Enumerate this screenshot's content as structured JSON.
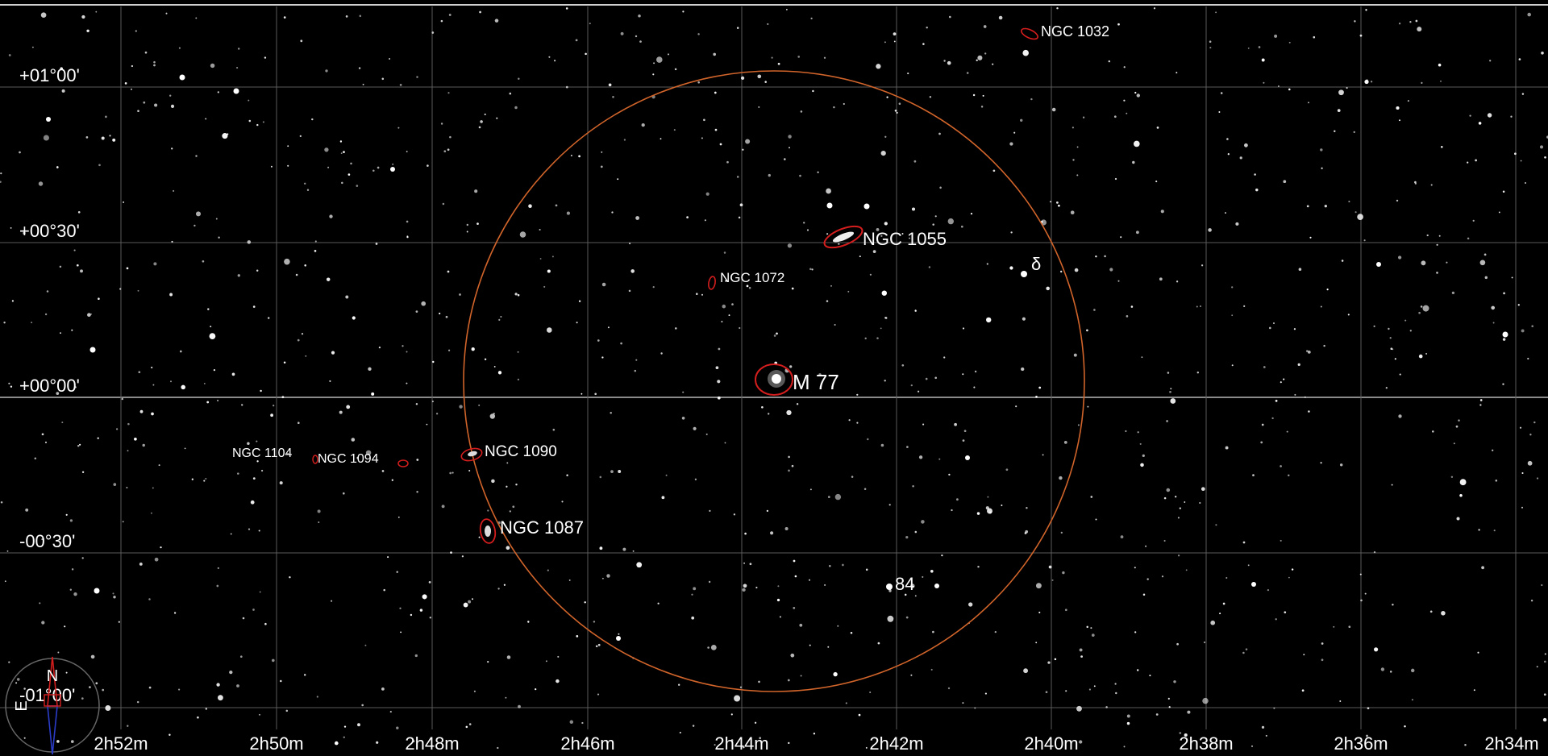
{
  "map": {
    "colors": {
      "background": "#000000",
      "grid": "#5a5a5a",
      "equator": "#8a8a8a",
      "fov_circle": "#d0642a",
      "object_marker": "#d41e1e",
      "compass_north": "#d41e1e",
      "compass_south": "#2a3cc8",
      "text": "#ffffff"
    },
    "dec_labels": [
      "+01°00'",
      "+00°30'",
      "+00°00'",
      "-00°30'",
      "-01°00'"
    ],
    "ra_labels": [
      "2h52m",
      "2h50m",
      "2h48m",
      "2h46m",
      "2h44m",
      "2h42m",
      "2h40m",
      "2h38m",
      "2h36m",
      "2h34m"
    ],
    "objects": [
      {
        "name": "M 77",
        "type": "galaxy"
      },
      {
        "name": "NGC 1055",
        "type": "galaxy"
      },
      {
        "name": "NGC 1072",
        "type": "galaxy"
      },
      {
        "name": "NGC 1032",
        "type": "galaxy"
      },
      {
        "name": "NGC 1090",
        "type": "galaxy"
      },
      {
        "name": "NGC 1087",
        "type": "galaxy"
      },
      {
        "name": "NGC 1094",
        "type": "galaxy"
      },
      {
        "name": "NGC 1104",
        "type": "galaxy"
      }
    ],
    "star_labels": [
      "δ",
      "84"
    ],
    "compass": {
      "north": "N",
      "east": "E"
    }
  }
}
